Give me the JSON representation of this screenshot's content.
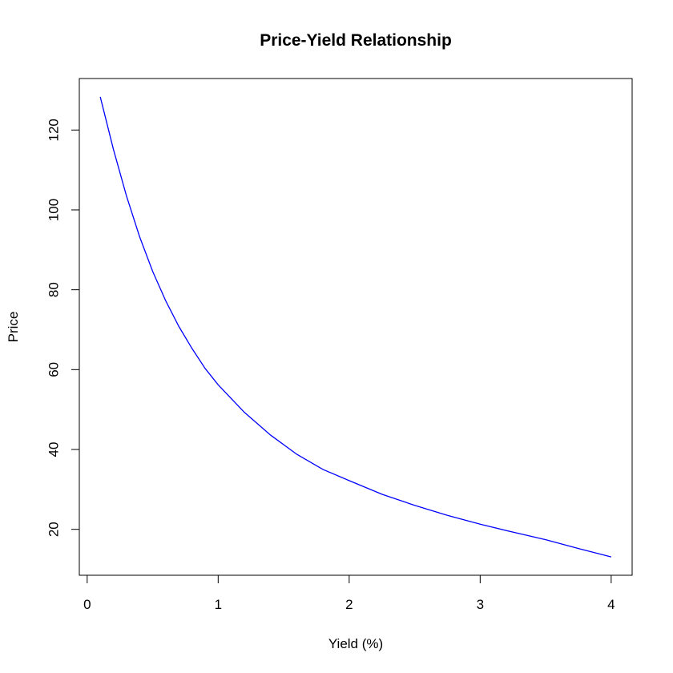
{
  "chart_data": {
    "type": "line",
    "title": "Price-Yield Relationship",
    "xlabel": "Yield (%)",
    "ylabel": "Price",
    "xlim": [
      -0.06,
      4.16
    ],
    "ylim": [
      8.5,
      132.9
    ],
    "xticks": [
      0,
      1,
      2,
      3,
      4
    ],
    "yticks": [
      20,
      40,
      60,
      80,
      100,
      120
    ],
    "xtick_labels": [
      "0",
      "1",
      "2",
      "3",
      "4"
    ],
    "ytick_labels": [
      "20",
      "40",
      "60",
      "80",
      "100",
      "120"
    ],
    "grid": false,
    "legend": null,
    "line_color": "#0000ff",
    "series": [
      {
        "x": [
          0.1,
          0.2,
          0.3,
          0.4,
          0.5,
          0.6,
          0.7,
          0.8,
          0.9,
          1.0,
          1.2,
          1.4,
          1.6,
          1.8,
          2.0,
          2.25,
          2.5,
          2.75,
          3.0,
          3.25,
          3.5,
          3.75,
          4.0
        ],
        "values": [
          128.3,
          115.2,
          103.5,
          93.3,
          84.6,
          77.2,
          70.8,
          65.3,
          60.3,
          56.2,
          49.3,
          43.6,
          38.8,
          35.0,
          32.2,
          28.8,
          26.0,
          23.5,
          21.3,
          19.3,
          17.4,
          15.2,
          13.1
        ]
      }
    ]
  }
}
